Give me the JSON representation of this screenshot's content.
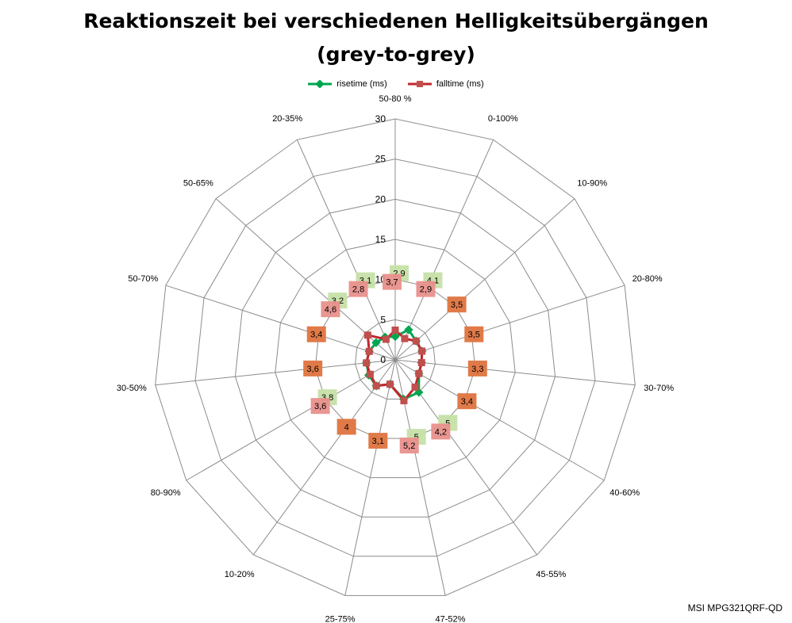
{
  "chart_data": {
    "type": "radar",
    "title": "Reaktionszeit bei verschiedenen Helligkeitsübergängen",
    "subtitle": "(grey-to-grey)",
    "categories": [
      "50-80 %",
      "0-100%",
      "10-90%",
      "20-80%",
      "30-70%",
      "40-60%",
      "45-55%",
      "47-52%",
      "25-75%",
      "10-20%",
      "80-90%",
      "30-50%",
      "50-70%",
      "50-65%",
      "20-35%"
    ],
    "series": [
      {
        "name": "risetime (ms)",
        "color": "#00a550",
        "label_bg": "#c6e0a8",
        "values": [
          2.9,
          4.1,
          3.5,
          3.5,
          3.3,
          3.4,
          5,
          5,
          3.1,
          4,
          3.8,
          3.6,
          3.4,
          3.2,
          3.1
        ]
      },
      {
        "name": "falltime (ms)",
        "color": "#c0282d",
        "marker_color": "#c0504d",
        "label_bg": "#e9908c",
        "values": [
          3.7,
          2.9,
          3.5,
          3.5,
          3.3,
          3.4,
          4.2,
          5.2,
          3.1,
          4,
          3.6,
          3.6,
          3.4,
          4.6,
          2.8
        ]
      }
    ],
    "value_labels": [
      [
        "2,9",
        "4,1",
        "3,5",
        "3,5",
        "3,3",
        "3,4",
        "5",
        "5",
        "3,1",
        "4",
        "3,8",
        "3,6",
        "3,4",
        "3,2",
        "3,1"
      ],
      [
        "3,7",
        "2,9",
        "3,5",
        "3,5",
        "3,3",
        "3,4",
        "4,2",
        "5,2",
        "3,1",
        "4",
        "3,6",
        "3,6",
        "3,4",
        "4,6",
        "2,8"
      ]
    ],
    "overlap_label_color": "#e07a48",
    "rlim": [
      0,
      30
    ],
    "ticks": [
      0,
      5,
      10,
      15,
      20,
      25,
      30
    ],
    "grid": true,
    "legend": "top"
  },
  "footer": "MSI MPG321QRF-QD"
}
